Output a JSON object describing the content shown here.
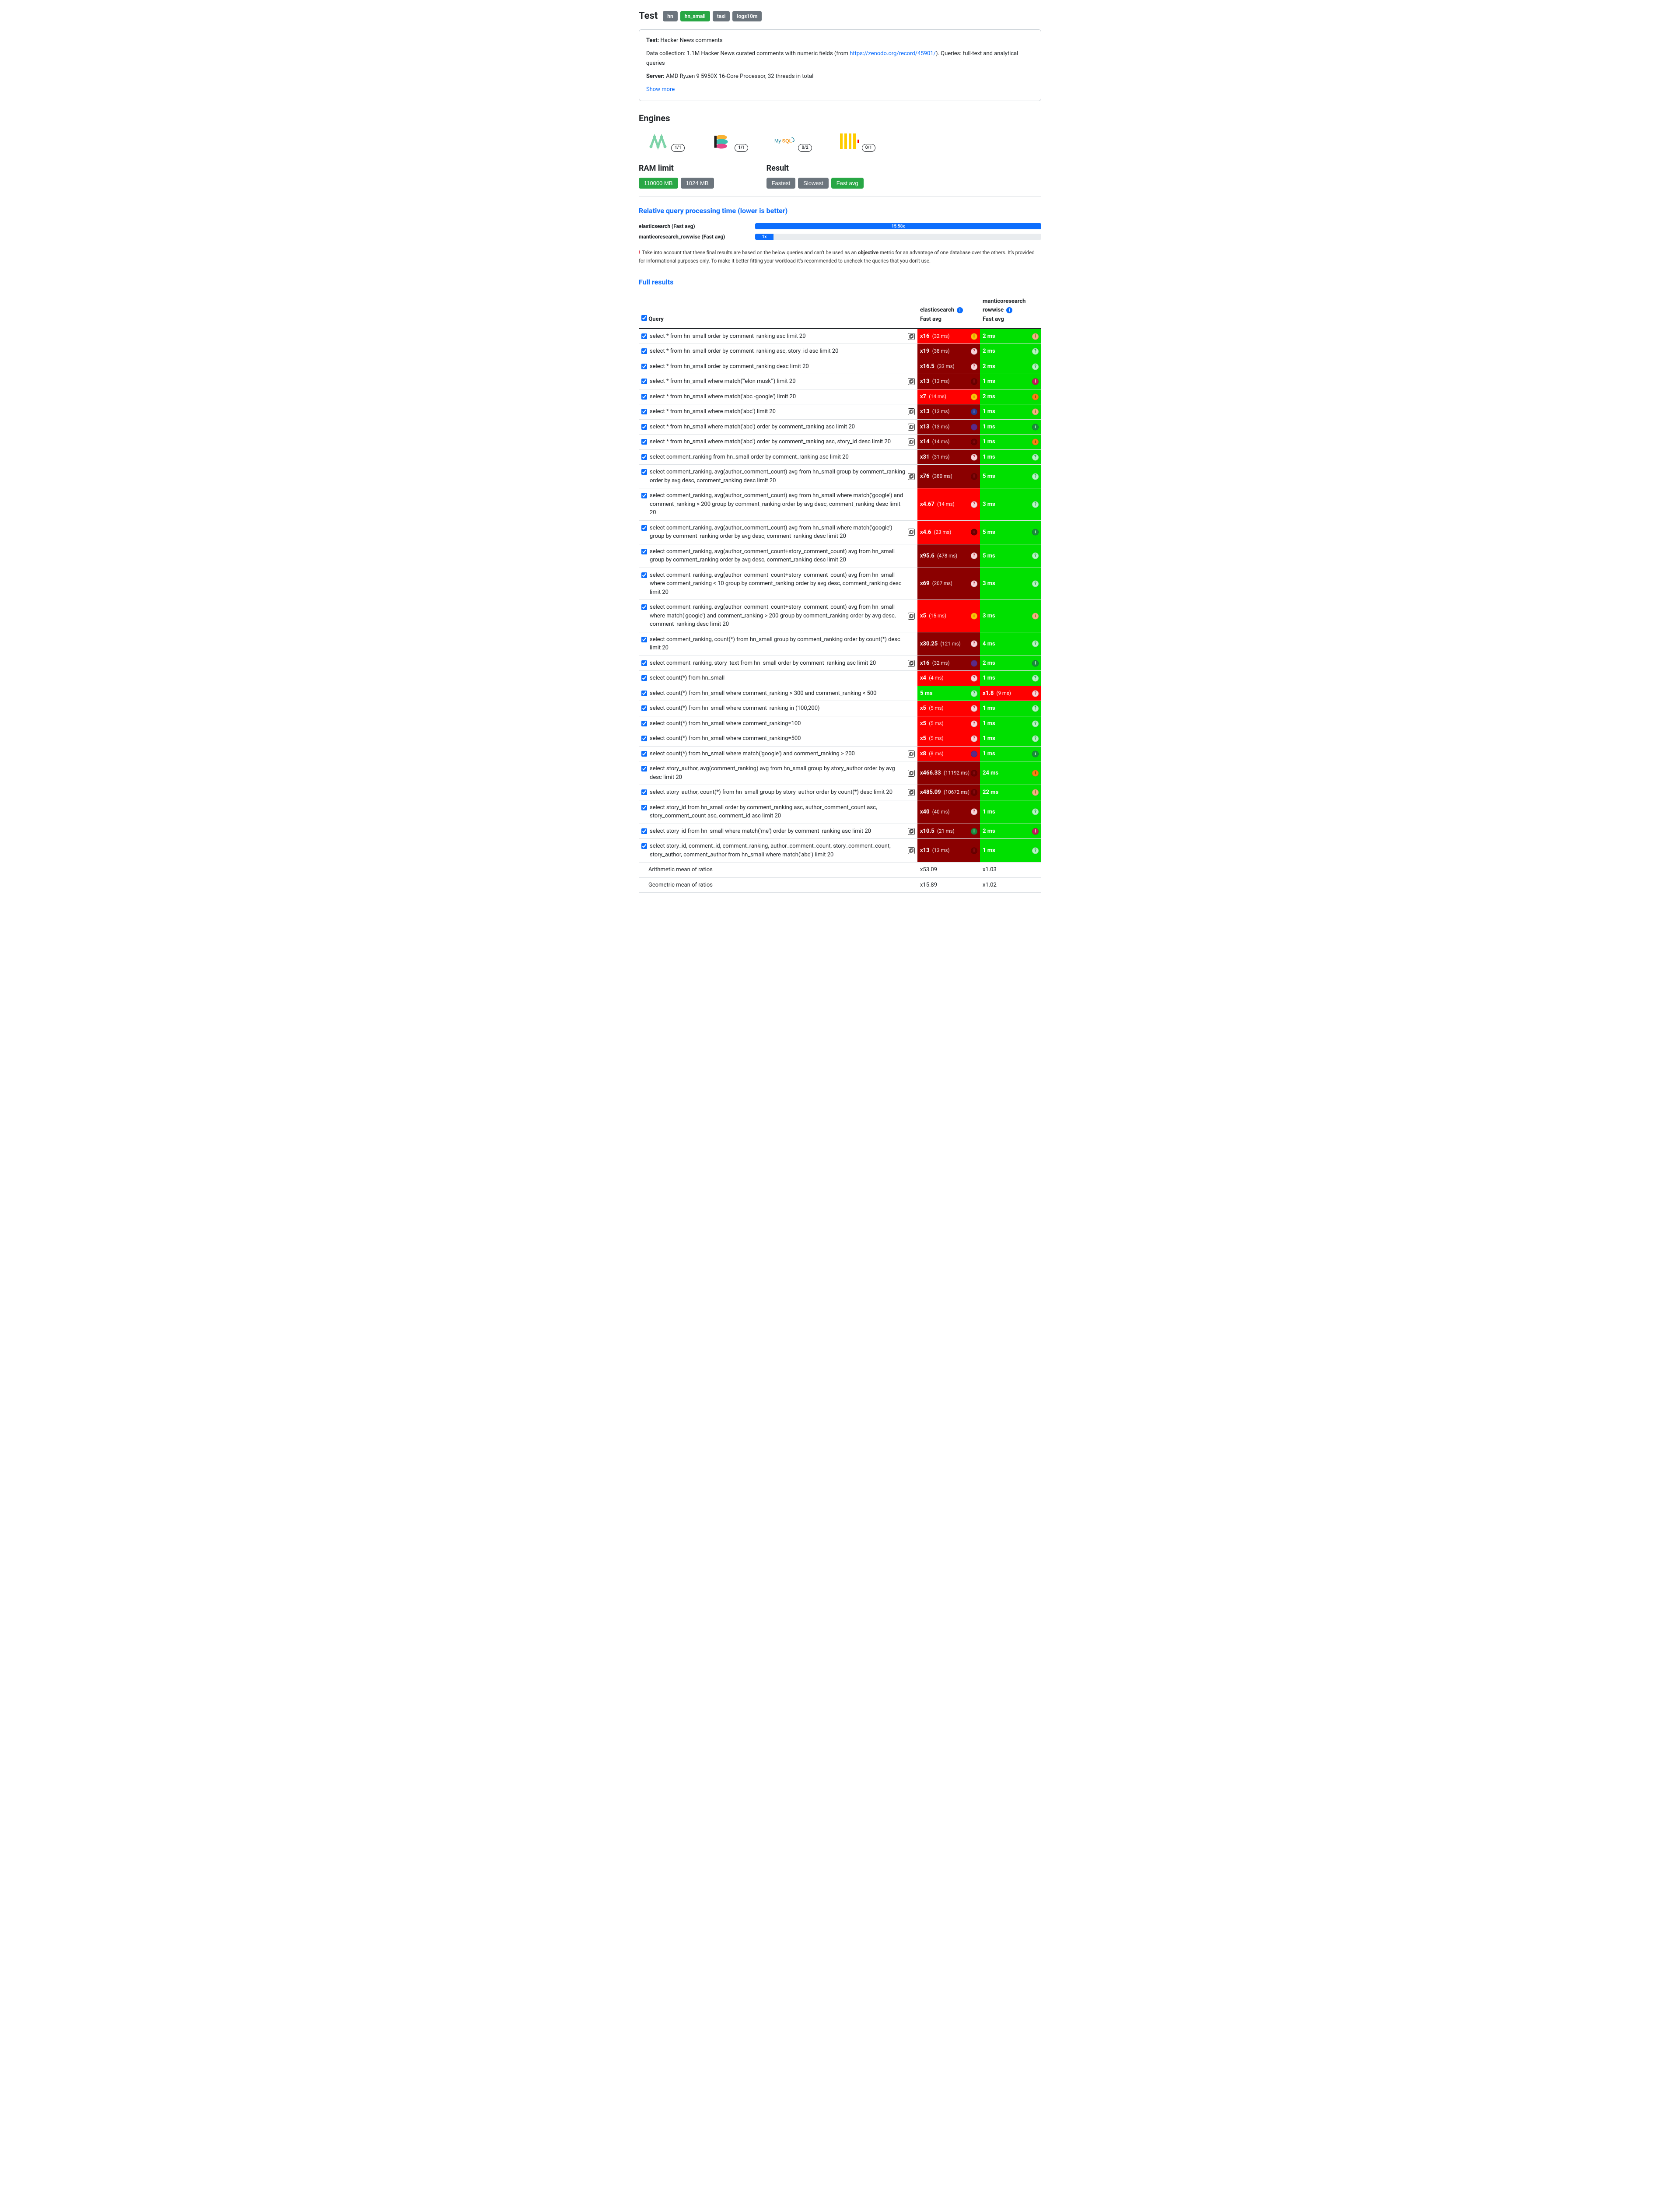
{
  "page_title": "Test",
  "tabs": [
    {
      "label": "hn",
      "active": false
    },
    {
      "label": "hn_small",
      "active": true
    },
    {
      "label": "taxi",
      "active": false
    },
    {
      "label": "logs10m",
      "active": false
    }
  ],
  "info": {
    "test_label": "Test:",
    "test_name": "Hacker News comments",
    "data_label": "Data collection:",
    "data_desc_pre": "1.1M Hacker News curated comments with numeric fields (from ",
    "data_link": "https://zenodo.org/record/45901/",
    "data_desc_post": "). Queries: full-text and analytical queries",
    "server_label": "Server:",
    "server_desc": "AMD Ryzen 9 5950X 16-Core Processor, 32 threads in total",
    "show_more": "Show more"
  },
  "engines_title": "Engines",
  "engines": [
    {
      "name": "manticore",
      "badge": "1/1"
    },
    {
      "name": "elastic",
      "badge": "1/1"
    },
    {
      "name": "mysql",
      "badge": "0/2"
    },
    {
      "name": "clickhouse",
      "badge": "0/1"
    }
  ],
  "ram": {
    "title": "RAM limit",
    "options": [
      {
        "label": "110000 MB",
        "active": true
      },
      {
        "label": "1024 MB",
        "active": false
      }
    ]
  },
  "result": {
    "title": "Result",
    "options": [
      {
        "label": "Fastest",
        "active": false
      },
      {
        "label": "Slowest",
        "active": false
      },
      {
        "label": "Fast avg",
        "active": true
      }
    ]
  },
  "relative": {
    "title": "Relative query processing time (lower is better)",
    "rows": [
      {
        "label": "elasticsearch (Fast avg)",
        "value": "15.58x",
        "width": 100,
        "color": "#0d6efd"
      },
      {
        "label": "manticoresearch_rowwise (Fast avg)",
        "value": "1x",
        "width": 6.4,
        "text_inside": true,
        "color": "#0d6efd"
      }
    ]
  },
  "disclaimer": {
    "exclaim": "!",
    "text_pre": "Take into account that these final results are based on the below queries and can't be used as an ",
    "bold": "objective",
    "text_post": " metric for an advantage of one database over the others. It's provided for informational purposes only. To make it better fitting your workload it's recommended to uncheck the queries that you don't use."
  },
  "full_results_title": "Full results",
  "columns": {
    "query": "Query",
    "engines": [
      {
        "name": "elasticsearch",
        "metric": "Fast avg"
      },
      {
        "name": "manticoresearch rowwise",
        "metric": "Fast avg"
      }
    ]
  },
  "colors": {
    "red_bright": "#ff0000",
    "red_dark": "#8b0000",
    "green": "#00e000",
    "status_yellow": "#ffc107",
    "status_red": "#dc3545",
    "status_green_dark": "#1b8a3e",
    "status_orange": "#fd7e14",
    "status_purple": "#5b2a86",
    "status_blue": "#2b3a8f",
    "status_peach": "#f4b183",
    "status_magenta": "#c2185b",
    "status_help": "#f8d7da"
  },
  "rows": [
    {
      "q": "select * from hn_small order by comment_ranking asc limit 20",
      "cache": true,
      "c1": {
        "ratio": "x16",
        "time": "(32 ms)",
        "bg": "red_bright",
        "status": "i_yellow"
      },
      "c2": {
        "text": "2 ms",
        "bg": "green",
        "status": "i_peach"
      }
    },
    {
      "q": "select * from hn_small order by comment_ranking asc, story_id asc limit 20",
      "cache": false,
      "c1": {
        "ratio": "x19",
        "time": "(38 ms)",
        "bg": "red_dark",
        "status": "q_help"
      },
      "c2": {
        "text": "2 ms",
        "bg": "green",
        "status": "q_green"
      }
    },
    {
      "q": "select * from hn_small order by comment_ranking desc limit 20",
      "cache": false,
      "c1": {
        "ratio": "x16.5",
        "time": "(33 ms)",
        "bg": "red_dark",
        "status": "q_help"
      },
      "c2": {
        "text": "2 ms",
        "bg": "green",
        "status": "q_green"
      }
    },
    {
      "q": "select * from hn_small where match('\"elon musk\"') limit 20",
      "cache": true,
      "c1": {
        "ratio": "x13",
        "time": "(13 ms)",
        "bg": "red_dark",
        "status": "i_red"
      },
      "c2": {
        "text": "1 ms",
        "bg": "green",
        "status": "i_magenta"
      }
    },
    {
      "q": "select * from hn_small where match('abc -google') limit 20",
      "cache": false,
      "c1": {
        "ratio": "x7",
        "time": "(14 ms)",
        "bg": "red_bright",
        "status": "i_yellow"
      },
      "c2": {
        "text": "2 ms",
        "bg": "green",
        "status": "i_orange"
      }
    },
    {
      "q": "select * from hn_small where match('abc') limit 20",
      "cache": true,
      "c1": {
        "ratio": "x13",
        "time": "(13 ms)",
        "bg": "red_dark",
        "status": "i_blue"
      },
      "c2": {
        "text": "1 ms",
        "bg": "green",
        "status": "i_peach"
      }
    },
    {
      "q": "select * from hn_small where match('abc') order by comment_ranking asc limit 20",
      "cache": true,
      "c1": {
        "ratio": "x13",
        "time": "(13 ms)",
        "bg": "red_dark",
        "status": "dot_purple"
      },
      "c2": {
        "text": "1 ms",
        "bg": "green",
        "status": "i_green"
      }
    },
    {
      "q": "select * from hn_small where match('abc') order by comment_ranking asc, story_id desc limit 20",
      "cache": true,
      "c1": {
        "ratio": "x14",
        "time": "(14 ms)",
        "bg": "red_dark",
        "status": "i_red"
      },
      "c2": {
        "text": "1 ms",
        "bg": "green",
        "status": "i_orange"
      }
    },
    {
      "q": "select comment_ranking from hn_small order by comment_ranking asc limit 20",
      "cache": false,
      "c1": {
        "ratio": "x31",
        "time": "(31 ms)",
        "bg": "red_dark",
        "status": "q_help"
      },
      "c2": {
        "text": "1 ms",
        "bg": "green",
        "status": "q_green"
      }
    },
    {
      "q": "select comment_ranking, avg(author_comment_count) avg from hn_small group by comment_ranking order by avg desc, comment_ranking desc limit 20",
      "cache": true,
      "c1": {
        "ratio": "x76",
        "time": "(380 ms)",
        "bg": "red_dark",
        "status": "i_red"
      },
      "c2": {
        "text": "5 ms",
        "bg": "green",
        "status": "q_green"
      }
    },
    {
      "q": "select comment_ranking, avg(author_comment_count) avg from hn_small where match('google') and comment_ranking > 200 group by comment_ranking order by avg desc, comment_ranking desc limit 20",
      "cache": false,
      "c1": {
        "ratio": "x4.67",
        "time": "(14 ms)",
        "bg": "red_bright",
        "status": "q_help"
      },
      "c2": {
        "text": "3 ms",
        "bg": "green",
        "status": "q_green"
      }
    },
    {
      "q": "select comment_ranking, avg(author_comment_count) avg from hn_small where match('google') group by comment_ranking order by avg desc, comment_ranking desc limit 20",
      "cache": true,
      "c1": {
        "ratio": "x4.6",
        "time": "(23 ms)",
        "bg": "red_bright",
        "status": "i_red"
      },
      "c2": {
        "text": "5 ms",
        "bg": "green",
        "status": "i_green"
      }
    },
    {
      "q": "select comment_ranking, avg(author_comment_count+story_comment_count) avg from hn_small group by comment_ranking order by avg desc, comment_ranking desc limit 20",
      "cache": false,
      "c1": {
        "ratio": "x95.6",
        "time": "(478 ms)",
        "bg": "red_dark",
        "status": "q_help"
      },
      "c2": {
        "text": "5 ms",
        "bg": "green",
        "status": "q_green"
      }
    },
    {
      "q": "select comment_ranking, avg(author_comment_count+story_comment_count) avg from hn_small where comment_ranking < 10 group by comment_ranking order by avg desc, comment_ranking desc limit 20",
      "cache": false,
      "c1": {
        "ratio": "x69",
        "time": "(207 ms)",
        "bg": "red_dark",
        "status": "q_help"
      },
      "c2": {
        "text": "3 ms",
        "bg": "green",
        "status": "q_green"
      }
    },
    {
      "q": "select comment_ranking, avg(author_comment_count+story_comment_count) avg from hn_small where match('google') and comment_ranking > 200 group by comment_ranking order by avg desc, comment_ranking desc limit 20",
      "cache": true,
      "c1": {
        "ratio": "x5",
        "time": "(15 ms)",
        "bg": "red_bright",
        "status": "i_yellow"
      },
      "c2": {
        "text": "3 ms",
        "bg": "green",
        "status": "i_peach"
      }
    },
    {
      "q": "select comment_ranking, count(*) from hn_small group by comment_ranking order by count(*) desc limit 20",
      "cache": false,
      "c1": {
        "ratio": "x30.25",
        "time": "(121 ms)",
        "bg": "red_dark",
        "status": "q_help"
      },
      "c2": {
        "text": "4 ms",
        "bg": "green",
        "status": "q_green"
      }
    },
    {
      "q": "select comment_ranking, story_text from hn_small order by comment_ranking asc limit 20",
      "cache": true,
      "c1": {
        "ratio": "x16",
        "time": "(32 ms)",
        "bg": "red_dark",
        "status": "dot_purple"
      },
      "c2": {
        "text": "2 ms",
        "bg": "green",
        "status": "i_green"
      }
    },
    {
      "q": "select count(*) from hn_small",
      "cache": false,
      "c1": {
        "ratio": "x4",
        "time": "(4 ms)",
        "bg": "red_bright",
        "status": "q_help"
      },
      "c2": {
        "text": "1 ms",
        "bg": "green",
        "status": "q_green"
      }
    },
    {
      "q": "select count(*) from hn_small where comment_ranking > 300 and comment_ranking < 500",
      "cache": false,
      "c1": {
        "text": "5 ms",
        "bg": "green",
        "status": "q_green"
      },
      "c2": {
        "ratio": "x1.8",
        "time": "(9 ms)",
        "bg": "red_bright",
        "status": "q_help"
      }
    },
    {
      "q": "select count(*) from hn_small where comment_ranking in (100,200)",
      "cache": false,
      "c1": {
        "ratio": "x5",
        "time": "(5 ms)",
        "bg": "red_bright",
        "status": "q_help"
      },
      "c2": {
        "text": "1 ms",
        "bg": "green",
        "status": "q_green"
      }
    },
    {
      "q": "select count(*) from hn_small where comment_ranking=100",
      "cache": false,
      "c1": {
        "ratio": "x5",
        "time": "(5 ms)",
        "bg": "red_bright",
        "status": "q_help"
      },
      "c2": {
        "text": "1 ms",
        "bg": "green",
        "status": "q_green"
      }
    },
    {
      "q": "select count(*) from hn_small where comment_ranking=500",
      "cache": false,
      "c1": {
        "ratio": "x5",
        "time": "(5 ms)",
        "bg": "red_bright",
        "status": "q_help"
      },
      "c2": {
        "text": "1 ms",
        "bg": "green",
        "status": "q_green"
      }
    },
    {
      "q": "select count(*) from hn_small where match('google') and comment_ranking > 200",
      "cache": true,
      "c1": {
        "ratio": "x8",
        "time": "(8 ms)",
        "bg": "red_bright",
        "status": "dot_purple"
      },
      "c2": {
        "text": "1 ms",
        "bg": "green",
        "status": "i_green"
      }
    },
    {
      "q": "select story_author, avg(comment_ranking) avg from hn_small group by story_author order by avg desc limit 20",
      "cache": true,
      "c1": {
        "ratio": "x466.33",
        "time": "(11192 ms)",
        "bg": "red_dark",
        "status": "i_red"
      },
      "c2": {
        "text": "24 ms",
        "bg": "green",
        "status": "i_orange"
      }
    },
    {
      "q": "select story_author, count(*) from hn_small group by story_author order by count(*) desc limit 20",
      "cache": true,
      "c1": {
        "ratio": "x485.09",
        "time": "(10672 ms)",
        "bg": "red_dark",
        "status": "i_red"
      },
      "c2": {
        "text": "22 ms",
        "bg": "green",
        "status": "i_peach"
      }
    },
    {
      "q": "select story_id from hn_small order by comment_ranking asc, author_comment_count asc, story_comment_count asc, comment_id asc limit 20",
      "cache": false,
      "c1": {
        "ratio": "x40",
        "time": "(40 ms)",
        "bg": "red_dark",
        "status": "q_help"
      },
      "c2": {
        "text": "1 ms",
        "bg": "green",
        "status": "q_green"
      }
    },
    {
      "q": "select story_id from hn_small where match('me') order by comment_ranking asc limit 20",
      "cache": true,
      "c1": {
        "ratio": "x10.5",
        "time": "(21 ms)",
        "bg": "red_dark",
        "status": "i_green"
      },
      "c2": {
        "text": "2 ms",
        "bg": "green",
        "status": "i_magenta"
      }
    },
    {
      "q": "select story_id, comment_id, comment_ranking, author_comment_count, story_comment_count, story_author, comment_author from hn_small where match('abc') limit 20",
      "cache": true,
      "c1": {
        "ratio": "x13",
        "time": "(13 ms)",
        "bg": "red_dark",
        "status": "i_red"
      },
      "c2": {
        "text": "1 ms",
        "bg": "green",
        "status": "q_green"
      }
    }
  ],
  "summary": [
    {
      "label": "Arithmetic mean of ratios",
      "c1": "x53.09",
      "c2": "x1.03"
    },
    {
      "label": "Geometric mean of ratios",
      "c1": "x15.89",
      "c2": "x1.02"
    }
  ]
}
